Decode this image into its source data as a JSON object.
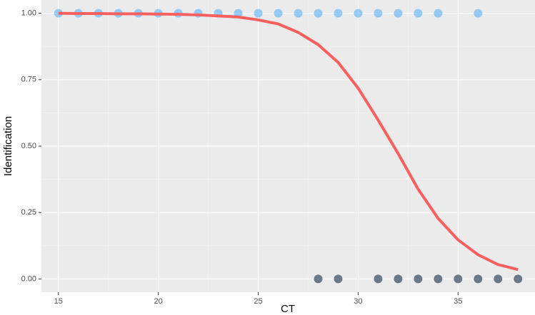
{
  "chart_data": {
    "type": "scatter",
    "xlabel": "CT",
    "ylabel": "Identification",
    "x": [
      15,
      16,
      17,
      18,
      19,
      20,
      21,
      22,
      23,
      24,
      25,
      26,
      27,
      28,
      29,
      30,
      31,
      32,
      33,
      34,
      36,
      28,
      29,
      31,
      32,
      33,
      34,
      35,
      36,
      37,
      38
    ],
    "values": [
      1,
      1,
      1,
      1,
      1,
      1,
      1,
      1,
      1,
      1,
      1,
      1,
      1,
      1,
      1,
      1,
      1,
      1,
      1,
      1,
      1,
      0,
      0,
      0,
      0,
      0,
      0,
      0,
      0,
      0,
      0
    ],
    "color_low": "#132b43",
    "color_high": "#56b1f7",
    "alpha": 0.6,
    "curve": {
      "x": [
        15,
        16,
        17,
        18,
        19,
        20,
        21,
        22,
        23,
        24,
        25,
        26,
        27,
        28,
        29,
        30,
        31,
        32,
        33,
        34,
        35,
        36,
        37,
        38
      ],
      "values": [
        1.0,
        0.999,
        0.999,
        0.998,
        0.998,
        0.997,
        0.996,
        0.994,
        0.99,
        0.986,
        0.975,
        0.96,
        0.928,
        0.882,
        0.815,
        0.718,
        0.598,
        0.472,
        0.338,
        0.228,
        0.147,
        0.091,
        0.054,
        0.035
      ],
      "color": "#f8605f"
    },
    "xlim": [
      14.15,
      38.85
    ],
    "xticks": [
      15,
      20,
      25,
      30,
      35
    ],
    "ylim": [
      -0.05,
      1.05
    ],
    "yticks": [
      {
        "value": 0,
        "label": "0.00"
      },
      {
        "value": 0.25,
        "label": "0.25"
      },
      {
        "value": 0.5,
        "label": "0.50"
      },
      {
        "value": 0.75,
        "label": "0.75"
      },
      {
        "value": 1,
        "label": "1.00"
      }
    ],
    "grid": true
  }
}
